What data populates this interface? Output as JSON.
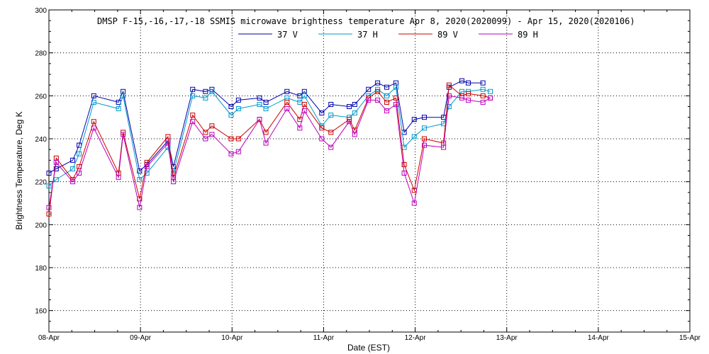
{
  "chart_data": {
    "type": "line",
    "title": "DMSP F-15,-16,-17,-18 SSMIS microwave brightness temperature Apr  8, 2020(2020099) - Apr 15, 2020(2020106)",
    "xlabel": "Date (EST)",
    "ylabel": "Brightness Temperature, Deg K",
    "xlim": [
      0,
      7
    ],
    "ylim": [
      150,
      300
    ],
    "x_ticks": [
      0,
      1,
      2,
      3,
      4,
      5,
      6,
      7
    ],
    "x_tick_labels": [
      "08-Apr",
      "09-Apr",
      "10-Apr",
      "11-Apr",
      "12-Apr",
      "13-Apr",
      "14-Apr",
      "15-Apr"
    ],
    "y_ticks": [
      160,
      180,
      200,
      220,
      240,
      260,
      280,
      300
    ],
    "grid": true,
    "legend_position": "top-center",
    "series": [
      {
        "name": "37 V",
        "color": "#0000aa",
        "x": [
          0.0,
          0.08,
          0.26,
          0.33,
          0.49,
          0.76,
          0.81,
          0.99,
          1.07,
          1.3,
          1.36,
          1.57,
          1.71,
          1.78,
          1.99,
          2.07,
          2.3,
          2.37,
          2.6,
          2.74,
          2.79,
          2.98,
          3.08,
          3.28,
          3.34,
          3.49,
          3.59,
          3.69,
          3.79,
          3.88,
          3.99,
          4.1,
          4.31,
          4.37,
          4.51,
          4.58,
          4.74,
          4.82,
          4.92
        ],
        "y": [
          224,
          226,
          230,
          237,
          260,
          257,
          262,
          225,
          228,
          239,
          227,
          263,
          262,
          263,
          255,
          258,
          259,
          257,
          262,
          260,
          262,
          252,
          256,
          255,
          256,
          263,
          266,
          264,
          266,
          243,
          249,
          250,
          250,
          264,
          267,
          266,
          266,
          null,
          null
        ]
      },
      {
        "name": "37 H",
        "color": "#0099cc",
        "x": [
          0.0,
          0.08,
          0.26,
          0.33,
          0.49,
          0.76,
          0.81,
          0.99,
          1.07,
          1.3,
          1.36,
          1.57,
          1.71,
          1.78,
          1.99,
          2.07,
          2.3,
          2.37,
          2.6,
          2.74,
          2.79,
          2.98,
          3.08,
          3.28,
          3.34,
          3.49,
          3.59,
          3.69,
          3.79,
          3.88,
          3.99,
          4.1,
          4.31,
          4.37,
          4.51,
          4.58,
          4.74,
          4.82,
          4.92
        ],
        "y": [
          218,
          221,
          226,
          233,
          257,
          254,
          260,
          221,
          224,
          236,
          224,
          260,
          259,
          262,
          251,
          254,
          256,
          254,
          259,
          257,
          260,
          246,
          251,
          250,
          252,
          260,
          263,
          260,
          264,
          236,
          241,
          245,
          247,
          255,
          262,
          262,
          263,
          262,
          null
        ]
      },
      {
        "name": "89 V",
        "color": "#cc0000",
        "x": [
          0.0,
          0.08,
          0.26,
          0.33,
          0.49,
          0.76,
          0.81,
          0.99,
          1.07,
          1.3,
          1.36,
          1.57,
          1.71,
          1.78,
          1.99,
          2.07,
          2.3,
          2.37,
          2.6,
          2.74,
          2.79,
          2.98,
          3.08,
          3.28,
          3.34,
          3.49,
          3.59,
          3.69,
          3.79,
          3.88,
          3.99,
          4.1,
          4.31,
          4.37,
          4.51,
          4.58,
          4.74,
          4.82,
          4.92
        ],
        "y": [
          205,
          231,
          221,
          227,
          248,
          224,
          243,
          212,
          229,
          241,
          222,
          251,
          243,
          246,
          240,
          240,
          249,
          243,
          257,
          249,
          256,
          245,
          243,
          249,
          244,
          259,
          262,
          257,
          259,
          228,
          216,
          240,
          238,
          265,
          260,
          261,
          260,
          259,
          null
        ]
      },
      {
        "name": "89 H",
        "color": "#bb00bb",
        "x": [
          0.0,
          0.08,
          0.26,
          0.33,
          0.49,
          0.76,
          0.81,
          0.99,
          1.07,
          1.3,
          1.36,
          1.57,
          1.71,
          1.78,
          1.99,
          2.07,
          2.3,
          2.37,
          2.6,
          2.74,
          2.79,
          2.98,
          3.08,
          3.28,
          3.34,
          3.49,
          3.59,
          3.69,
          3.79,
          3.88,
          3.99,
          4.1,
          4.31,
          4.37,
          4.51,
          4.58,
          4.74,
          4.82,
          4.92
        ],
        "y": [
          208,
          229,
          220,
          224,
          245,
          222,
          242,
          208,
          227,
          238,
          220,
          248,
          240,
          242,
          233,
          234,
          249,
          238,
          254,
          245,
          253,
          240,
          236,
          248,
          242,
          258,
          258,
          253,
          256,
          224,
          210,
          237,
          236,
          260,
          259,
          258,
          257,
          259,
          null
        ]
      }
    ]
  }
}
